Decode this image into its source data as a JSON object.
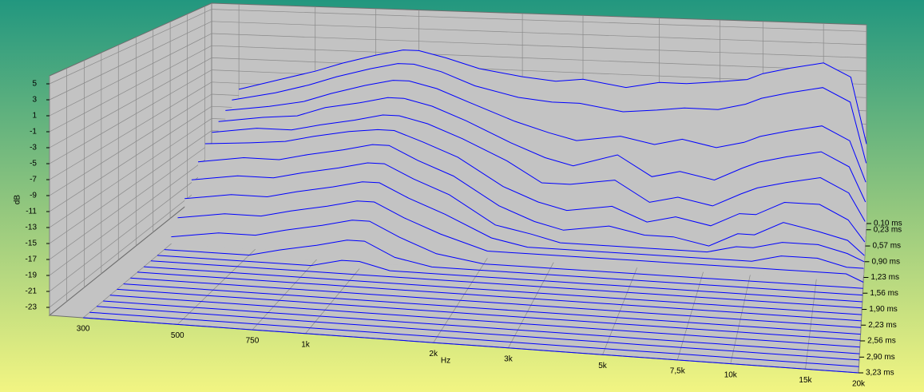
{
  "chart_data": {
    "type": "waterfall",
    "xlabel": "Hz",
    "ylabel": "dB",
    "xscale": "log",
    "xlim": [
      250,
      20000
    ],
    "ylim": [
      -24,
      6
    ],
    "zlim": [
      0.1,
      3.23
    ],
    "grid": true,
    "color": "#0000ff",
    "xticks": [
      300,
      500,
      750,
      {
        "value": 1000,
        "label": "1k"
      },
      {
        "value": 2000,
        "label": "2k"
      },
      {
        "value": 3000,
        "label": "3k"
      },
      {
        "value": 5000,
        "label": "5k"
      },
      {
        "value": 7500,
        "label": "7,5k"
      },
      {
        "value": 10000,
        "label": "10k"
      },
      {
        "value": 15000,
        "label": "15k"
      },
      {
        "value": 20000,
        "label": "20k"
      }
    ],
    "yticks": [
      5,
      3,
      1,
      -1,
      -3,
      -5,
      -7,
      -9,
      -11,
      -13,
      -15,
      -17,
      -19,
      -21,
      -23
    ],
    "zticks": [
      {
        "value": 0.1,
        "label": "0,10 ms"
      },
      {
        "value": 0.23,
        "label": "0,23 ms"
      },
      {
        "value": 0.57,
        "label": "0,57 ms"
      },
      {
        "value": 0.9,
        "label": "0,90 ms"
      },
      {
        "value": 1.23,
        "label": "1,23 ms"
      },
      {
        "value": 1.56,
        "label": "1,56 ms"
      },
      {
        "value": 1.9,
        "label": "1,90 ms"
      },
      {
        "value": 2.23,
        "label": "2,23 ms"
      },
      {
        "value": 2.56,
        "label": "2,56 ms"
      },
      {
        "value": 2.9,
        "label": "2,90 ms"
      },
      {
        "value": 3.23,
        "label": "3,23 ms"
      }
    ],
    "x": [
      300,
      400,
      500,
      600,
      750,
      900,
      1000,
      1200,
      1500,
      2000,
      2500,
      3000,
      4000,
      5000,
      6000,
      7500,
      9000,
      10000,
      12000,
      15000,
      18000,
      20000
    ],
    "z": [
      0.1,
      0.24,
      0.37,
      0.51,
      0.64,
      0.78,
      0.92,
      1.05,
      1.19,
      1.33,
      1.46,
      1.6,
      1.74,
      1.87,
      2.01,
      2.14,
      2.28,
      2.42,
      2.55,
      2.69,
      2.83,
      2.96,
      3.1,
      3.23
    ],
    "series": [
      {
        "values": [
          -8,
          -6,
          -4.5,
          -3,
          -1.5,
          -0.5,
          -0.5,
          -1.5,
          -3,
          -4,
          -4.5,
          -4,
          -5,
          -4,
          -4,
          -3.5,
          -3,
          -2,
          -1,
          0,
          -2,
          -12
        ]
      },
      {
        "values": [
          -9,
          -7.5,
          -6,
          -4.5,
          -3,
          -2,
          -2,
          -3,
          -5,
          -6.5,
          -7,
          -7,
          -8,
          -7.5,
          -7,
          -7,
          -6,
          -5,
          -4,
          -3,
          -5,
          -14
        ]
      },
      {
        "values": [
          -10,
          -9,
          -8,
          -6.5,
          -5,
          -4,
          -4,
          -5,
          -7,
          -9.5,
          -11,
          -12,
          -11,
          -12,
          -11,
          -12,
          -11,
          -10,
          -9,
          -8,
          -10,
          -16
        ]
      },
      {
        "values": [
          -11,
          -10,
          -9.5,
          -8,
          -7,
          -6,
          -6,
          -7,
          -9,
          -12,
          -14,
          -15,
          -13,
          -16,
          -15,
          -16,
          -14,
          -13,
          -12,
          -11,
          -13,
          -18
        ]
      },
      {
        "values": [
          -12,
          -11,
          -11,
          -10,
          -9,
          -8,
          -8,
          -9,
          -11,
          -14,
          -17,
          -17,
          -16,
          -19,
          -18,
          -19,
          -17,
          -16,
          -15,
          -14,
          -16,
          -20
        ]
      },
      {
        "values": [
          -13,
          -12.5,
          -12,
          -11,
          -10,
          -9.5,
          -9.5,
          -11,
          -13,
          -17,
          -19,
          -20,
          -19,
          -21,
          -20,
          -21,
          -19,
          -19,
          -17,
          -17,
          -19,
          -22
        ]
      },
      {
        "values": [
          -15,
          -14,
          -14,
          -13,
          -12,
          -11,
          -11,
          -13,
          -15,
          -19,
          -21,
          -22,
          -21,
          -22,
          -22,
          -23,
          -21,
          -21,
          -19,
          -20,
          -21,
          -23
        ]
      },
      {
        "values": [
          -17,
          -16,
          -16,
          -15,
          -14,
          -13,
          -13,
          -15,
          -17,
          -21,
          -22,
          -23,
          -23,
          -23,
          -23,
          -23,
          -22,
          -22,
          -21,
          -21,
          -22,
          -23
        ]
      },
      {
        "values": [
          -19,
          -18,
          -18,
          -17,
          -16,
          -15,
          -15,
          -17,
          -19,
          -22,
          -23,
          -23,
          -23,
          -23,
          -23,
          -23,
          -23,
          -23,
          -22,
          -22,
          -23,
          -23
        ]
      },
      {
        "values": [
          -21,
          -20,
          -20,
          -19,
          -18,
          -17,
          -17,
          -19,
          -21,
          -23,
          -23,
          -23,
          -23,
          -23,
          -23,
          -23,
          -23,
          -23,
          -23,
          -23,
          -23,
          -24
        ]
      },
      {
        "values": [
          -23,
          -22,
          -22,
          -21,
          -20,
          -19,
          -19,
          -21,
          -23,
          -24,
          -24,
          -24,
          -24,
          -24,
          -24,
          -24,
          -24,
          -24,
          -24,
          -24,
          -24,
          -24
        ]
      },
      {
        "values": [
          -24,
          -24,
          -24,
          -23,
          -22,
          -21,
          -21,
          -23,
          -24,
          -24,
          -24,
          -24,
          -24,
          -24,
          -24,
          -24,
          -24,
          -24,
          -24,
          -24,
          -24,
          -24
        ]
      },
      {
        "values": [
          -24,
          -24,
          -24,
          -24,
          -24,
          -23,
          -23,
          -24,
          -24,
          -24,
          -24,
          -24,
          -24,
          -24,
          -24,
          -24,
          -24,
          -24,
          -24,
          -24,
          -24,
          -24
        ]
      },
      {
        "values": [
          -24,
          -24,
          -24,
          -24,
          -24,
          -24,
          -24,
          -24,
          -24,
          -24,
          -24,
          -24,
          -24,
          -24,
          -24,
          -24,
          -24,
          -24,
          -24,
          -24,
          -24,
          -24
        ]
      },
      {
        "values": [
          -24,
          -24,
          -24,
          -24,
          -24,
          -24,
          -24,
          -24,
          -24,
          -24,
          -24,
          -24,
          -24,
          -24,
          -24,
          -24,
          -24,
          -24,
          -24,
          -24,
          -24,
          -24
        ]
      },
      {
        "values": [
          -24,
          -24,
          -24,
          -24,
          -24,
          -24,
          -24,
          -24,
          -24,
          -24,
          -24,
          -24,
          -24,
          -24,
          -24,
          -24,
          -24,
          -24,
          -24,
          -24,
          -24,
          -24
        ]
      },
      {
        "values": [
          -24,
          -24,
          -24,
          -24,
          -24,
          -24,
          -24,
          -24,
          -24,
          -24,
          -24,
          -24,
          -24,
          -24,
          -24,
          -24,
          -24,
          -24,
          -24,
          -24,
          -24,
          -24
        ]
      },
      {
        "values": [
          -24,
          -24,
          -24,
          -24,
          -24,
          -24,
          -24,
          -24,
          -24,
          -24,
          -24,
          -24,
          -24,
          -24,
          -24,
          -24,
          -24,
          -24,
          -24,
          -24,
          -24,
          -24
        ]
      },
      {
        "values": [
          -24,
          -24,
          -24,
          -24,
          -24,
          -24,
          -24,
          -24,
          -24,
          -24,
          -24,
          -24,
          -24,
          -24,
          -24,
          -24,
          -24,
          -24,
          -24,
          -24,
          -24,
          -24
        ]
      },
      {
        "values": [
          -24,
          -24,
          -24,
          -24,
          -24,
          -24,
          -24,
          -24,
          -24,
          -24,
          -24,
          -24,
          -24,
          -24,
          -24,
          -24,
          -24,
          -24,
          -24,
          -24,
          -24,
          -24
        ]
      },
      {
        "values": [
          -24,
          -24,
          -24,
          -24,
          -24,
          -24,
          -24,
          -24,
          -24,
          -24,
          -24,
          -24,
          -24,
          -24,
          -24,
          -24,
          -24,
          -24,
          -24,
          -24,
          -24,
          -24
        ]
      },
      {
        "values": [
          -24,
          -24,
          -24,
          -24,
          -24,
          -24,
          -24,
          -24,
          -24,
          -24,
          -24,
          -24,
          -24,
          -24,
          -24,
          -24,
          -24,
          -24,
          -24,
          -24,
          -24,
          -24
        ]
      },
      {
        "values": [
          -24,
          -24,
          -24,
          -24,
          -24,
          -24,
          -24,
          -24,
          -24,
          -24,
          -24,
          -24,
          -24,
          -24,
          -24,
          -24,
          -24,
          -24,
          -24,
          -24,
          -24,
          -24
        ]
      },
      {
        "values": [
          -24,
          -24,
          -24,
          -24,
          -24,
          -24,
          -24,
          -24,
          -24,
          -24,
          -24,
          -24,
          -24,
          -24,
          -24,
          -24,
          -24,
          -24,
          -24,
          -24,
          -24,
          -24
        ]
      }
    ]
  }
}
